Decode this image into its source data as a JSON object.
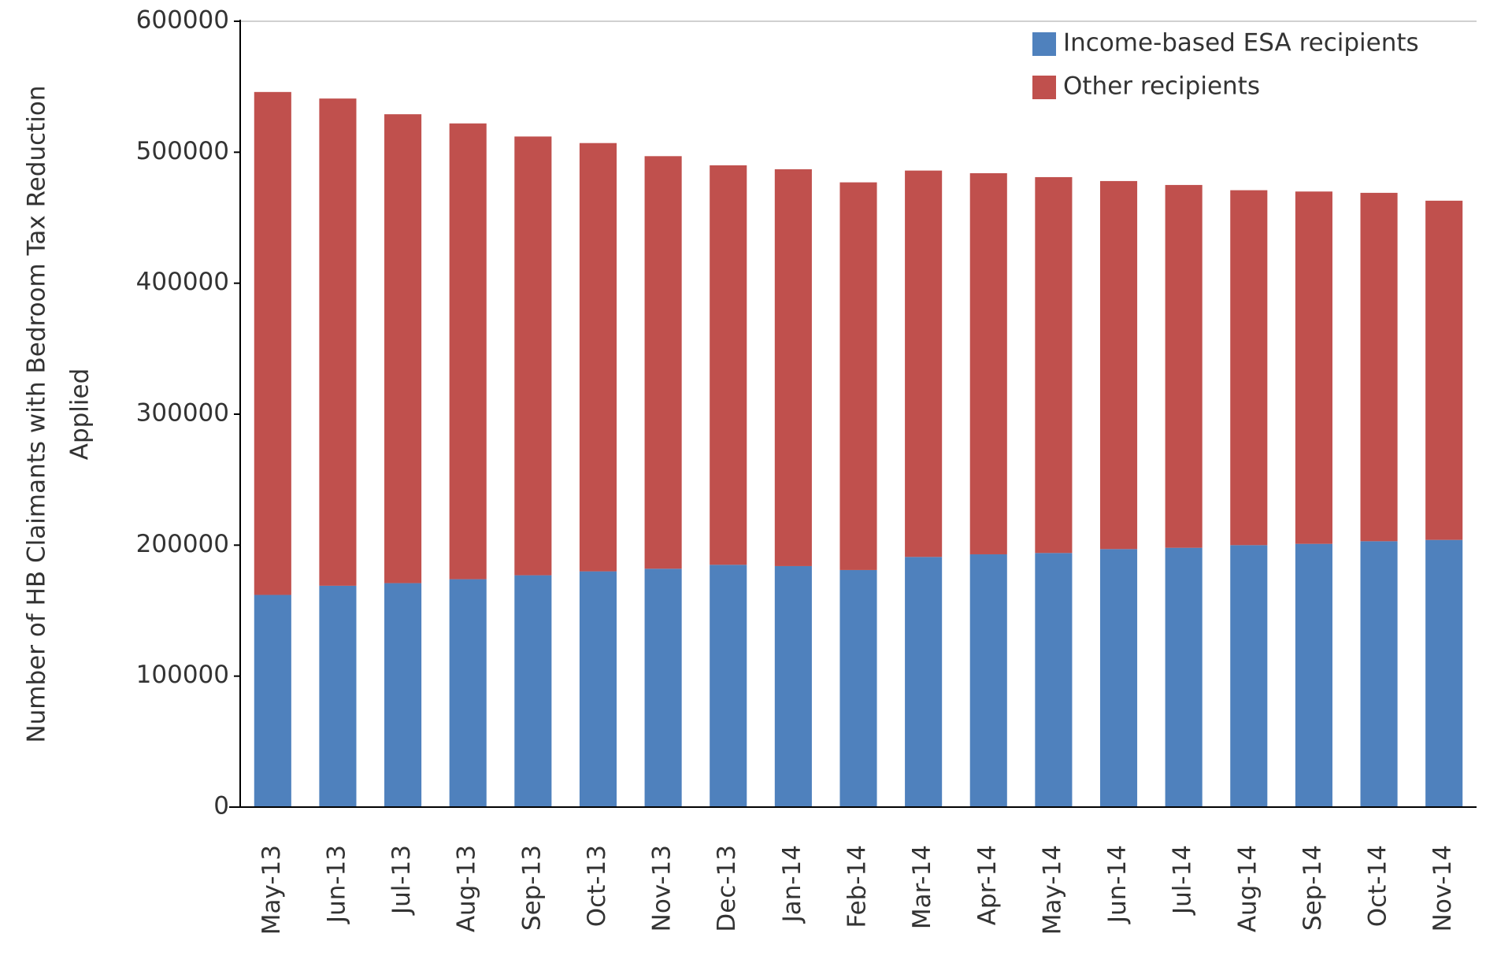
{
  "chart_data": {
    "type": "stacked_bar",
    "y_label": [
      "Number of HB Claimants with Bedroom Tax Reduction",
      "Applied"
    ],
    "categories": [
      "May-13",
      "Jun-13",
      "Jul-13",
      "Aug-13",
      "Sep-13",
      "Oct-13",
      "Nov-13",
      "Dec-13",
      "Jan-14",
      "Feb-14",
      "Mar-14",
      "Apr-14",
      "May-14",
      "Jun-14",
      "Jul-14",
      "Aug-14",
      "Sep-14",
      "Oct-14",
      "Nov-14"
    ],
    "series": [
      {
        "name": "Income-based ESA recipients",
        "color": "#4f81bd",
        "values": [
          162000,
          169000,
          171000,
          174000,
          177000,
          180000,
          182000,
          185000,
          184000,
          181000,
          191000,
          193000,
          194000,
          197000,
          198000,
          200000,
          201000,
          203000,
          204000
        ]
      },
      {
        "name": "Other recipients",
        "color": "#c0504d",
        "values": [
          384000,
          372000,
          358000,
          348000,
          335000,
          327000,
          315000,
          305000,
          303000,
          296000,
          295000,
          291000,
          287000,
          281000,
          277000,
          271000,
          269000,
          266000,
          259000
        ]
      }
    ],
    "ylim": [
      0,
      600000
    ],
    "yticks": [
      0,
      100000,
      200000,
      300000,
      400000,
      500000,
      600000
    ],
    "legend": "top-right",
    "grid": false
  }
}
